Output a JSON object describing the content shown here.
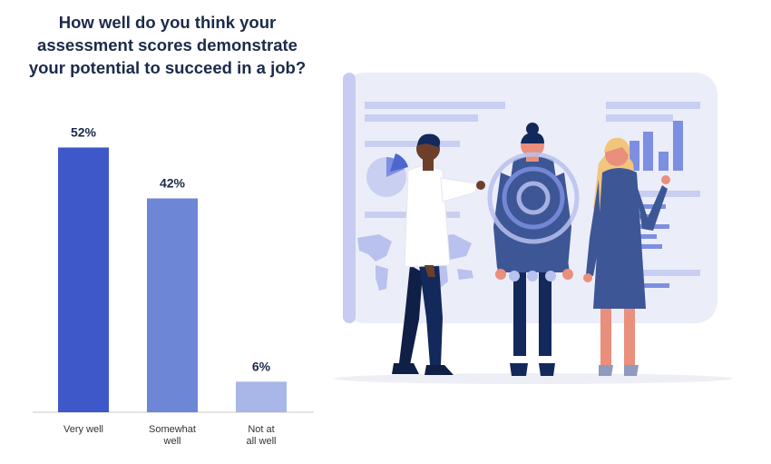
{
  "title_lines": [
    "How well do you think your",
    "assessment scores demonstrate",
    "your potential to succeed in a job?"
  ],
  "chart_data": {
    "type": "bar",
    "title": "How well do you think your assessment scores demonstrate your potential to succeed in a job?",
    "categories": [
      [
        "Very well"
      ],
      [
        "Somewhat",
        "well"
      ],
      [
        "Not at",
        "all well"
      ]
    ],
    "values": [
      52,
      42,
      6
    ],
    "value_labels": [
      "52%",
      "42%",
      "6%"
    ],
    "ylim": [
      0,
      56
    ],
    "grid": false,
    "colors": [
      "#3f58c9",
      "#6e86d6",
      "#a8b7e8"
    ]
  },
  "colors": {
    "title": "#1b2a4a",
    "panel": "#ebedf9",
    "accent": "#7d8fe0",
    "navy": "#13285b",
    "skin": "#e98f7c"
  }
}
